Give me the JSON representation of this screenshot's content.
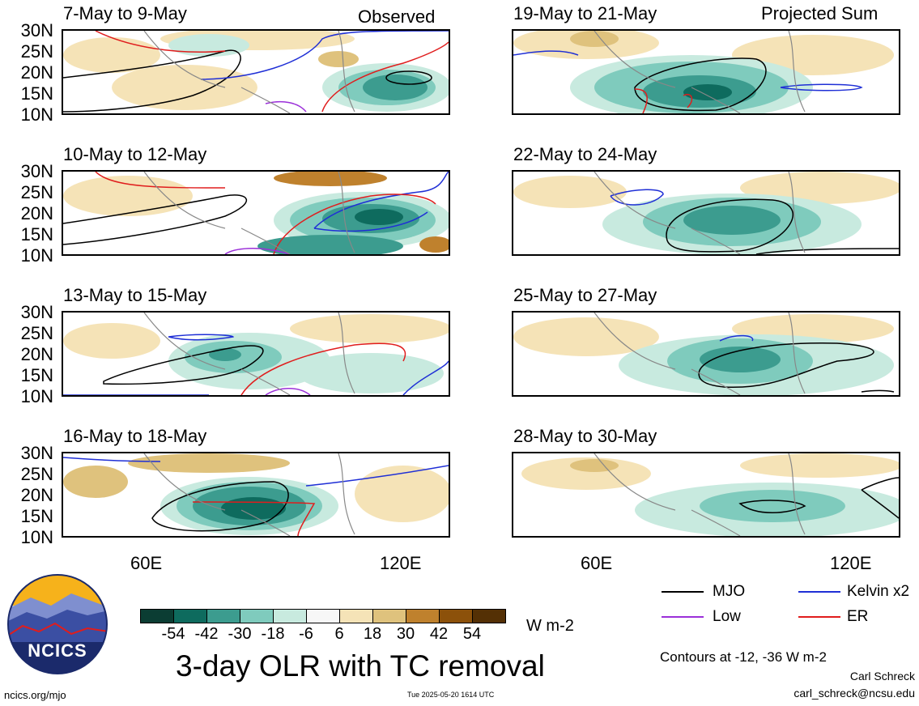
{
  "left_header": "Observed",
  "right_header": "Projected Sum",
  "lat_labels": [
    "30N",
    "25N",
    "20N",
    "15N",
    "10N"
  ],
  "lon_labels": [
    "60E",
    "120E"
  ],
  "panels_left": [
    "7-May to 9-May",
    "10-May to 12-May",
    "13-May to 15-May",
    "16-May to 18-May"
  ],
  "panels_right": [
    "19-May to 21-May",
    "22-May to 24-May",
    "25-May to 27-May",
    "28-May to 30-May"
  ],
  "colorbar": {
    "ticks": [
      "-54",
      "-42",
      "-30",
      "-18",
      "-6",
      "6",
      "18",
      "30",
      "42",
      "54"
    ],
    "colors": [
      "#0b3d33",
      "#0e6b5e",
      "#3c9c8f",
      "#7fcbbd",
      "#c8eadf",
      "#f7f7f7",
      "#f5e3b7",
      "#dfc27d",
      "#bf812d",
      "#8c510a",
      "#543005"
    ],
    "units": "W m-2"
  },
  "legend": [
    {
      "label": "MJO",
      "color": "#000000"
    },
    {
      "label": "Kelvin x2",
      "color": "#1f2fd6"
    },
    {
      "label": "Low",
      "color": "#9b30d9"
    },
    {
      "label": "ER",
      "color": "#e01d1d"
    }
  ],
  "main_title": "3-day OLR with TC removal",
  "contour_note": "Contours at -12, -36 W m-2",
  "author": "Carl Schreck",
  "email": "carl_schreck@ncsu.edu",
  "url": "ncics.org/mjo",
  "timestamp": "Tue 2025-05-20 1614 UTC",
  "logo_text": "NCICS"
}
